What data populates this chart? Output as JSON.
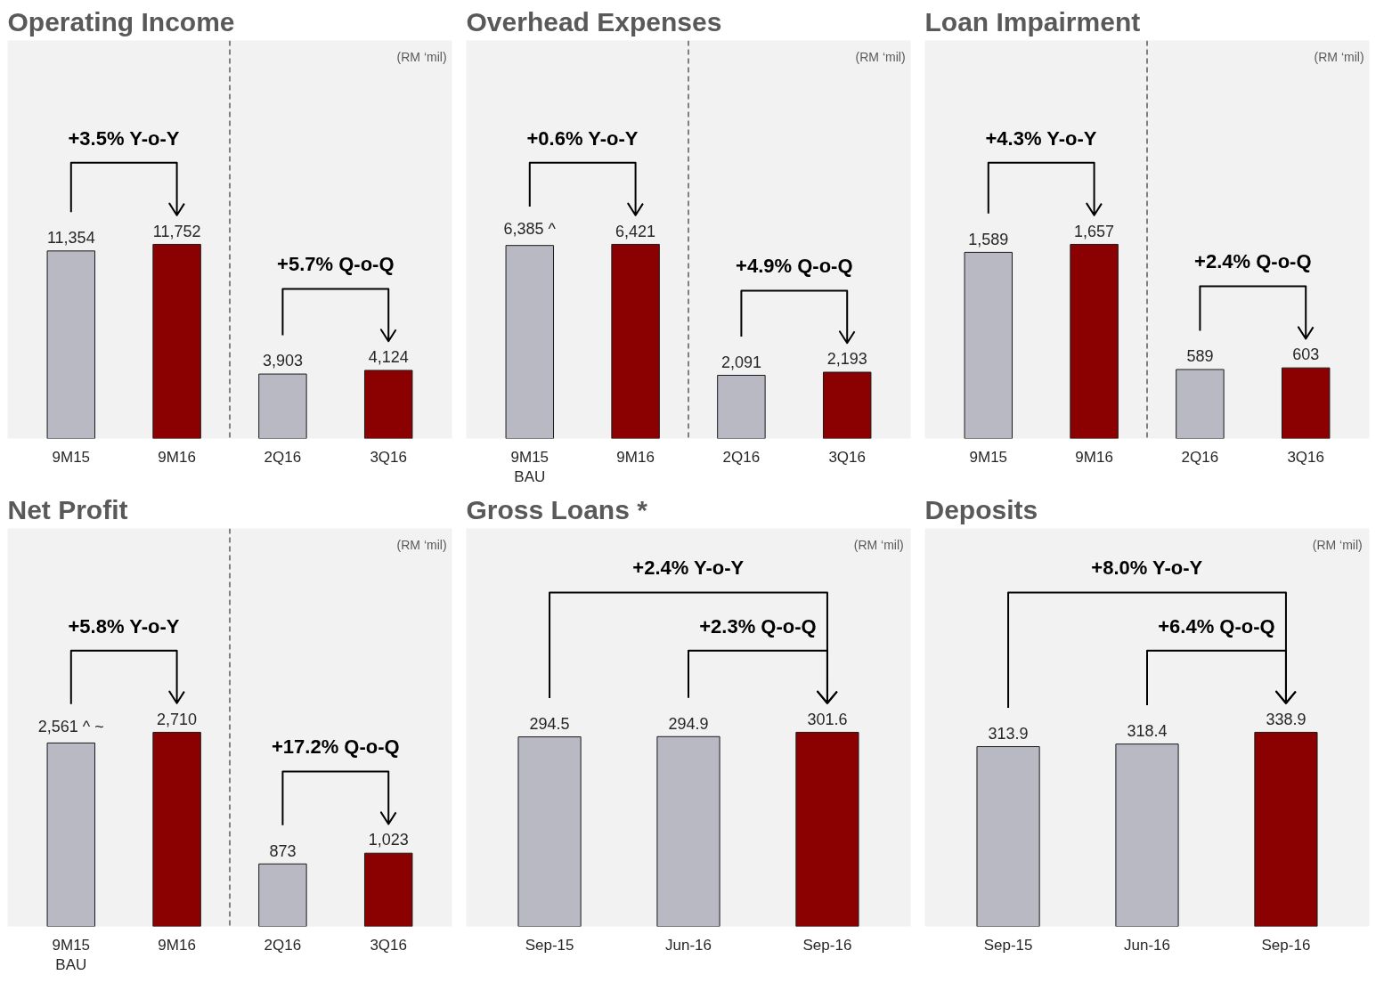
{
  "chart_data": [
    {
      "type": "bar",
      "title": "Operating Income",
      "subtitle": "(RM ‘mil)",
      "categories": [
        "9M15",
        "9M16",
        "2Q16",
        "3Q16"
      ],
      "values": [
        11354,
        11752,
        3903,
        4124
      ],
      "colors": [
        "#b9b9c3",
        "#8b0000",
        "#b9b9c3",
        "#8b0000"
      ],
      "value_labels": [
        "11,354",
        "11,752",
        "3,903",
        "4,124"
      ],
      "annotations": [
        "+3.5% Y-o-Y",
        "+5.7% Q-o-Q"
      ],
      "tick_labels": "x"
    },
    {
      "type": "bar",
      "title": "Overhead Expenses",
      "subtitle": "(RM ‘mil)",
      "categories": [
        "9M15\nBAU",
        "9M16",
        "2Q16",
        "3Q16"
      ],
      "values": [
        6385,
        6421,
        2091,
        2193
      ],
      "colors": [
        "#b9b9c3",
        "#8b0000",
        "#b9b9c3",
        "#8b0000"
      ],
      "value_labels": [
        "6,385 ^",
        "6,421",
        "2,091",
        "2,193"
      ],
      "annotations": [
        "+0.6% Y-o-Y",
        "+4.9% Q-o-Q"
      ],
      "tick_labels": "x"
    },
    {
      "type": "bar",
      "title": "Loan Impairment",
      "subtitle": "(RM ‘mil)",
      "categories": [
        "9M15",
        "9M16",
        "2Q16",
        "3Q16"
      ],
      "values": [
        1589,
        1657,
        589,
        603
      ],
      "colors": [
        "#b9b9c3",
        "#8b0000",
        "#b9b9c3",
        "#8b0000"
      ],
      "value_labels": [
        "1,589",
        "1,657",
        "589",
        "603"
      ],
      "annotations": [
        "+4.3% Y-o-Y",
        "+2.4% Q-o-Q"
      ],
      "tick_labels": "x"
    },
    {
      "type": "bar",
      "title": "Net Profit",
      "subtitle": "(RM ‘mil)",
      "categories": [
        "9M15\nBAU",
        "9M16",
        "2Q16",
        "3Q16"
      ],
      "values": [
        2561,
        2710,
        873,
        1023
      ],
      "colors": [
        "#b9b9c3",
        "#8b0000",
        "#b9b9c3",
        "#8b0000"
      ],
      "value_labels": [
        "2,561 ^ ~",
        "2,710",
        "873",
        "1,023"
      ],
      "annotations": [
        "+5.8% Y-o-Y",
        "+17.2% Q-o-Q"
      ],
      "tick_labels": "x"
    },
    {
      "type": "bar",
      "title": "Gross Loans *",
      "subtitle": "(RM ‘mil)",
      "categories": [
        "Sep-15",
        "Jun-16",
        "Sep-16"
      ],
      "values": [
        294.5,
        294.9,
        301.6
      ],
      "colors": [
        "#b9b9c3",
        "#b9b9c3",
        "#8b0000"
      ],
      "value_labels": [
        "294.5",
        "294.9",
        "301.6"
      ],
      "annotations": [
        "+2.4% Y-o-Y",
        "+2.3% Q-o-Q"
      ],
      "tick_labels": "x"
    },
    {
      "type": "bar",
      "title": "Deposits",
      "subtitle": "(RM ‘mil)",
      "categories": [
        "Sep-15",
        "Jun-16",
        "Sep-16"
      ],
      "values": [
        313.9,
        318.4,
        338.9
      ],
      "colors": [
        "#b9b9c3",
        "#b9b9c3",
        "#8b0000"
      ],
      "value_labels": [
        "313.9",
        "318.4",
        "338.9"
      ],
      "annotations": [
        "+8.0% Y-o-Y",
        "+6.4% Q-o-Q"
      ],
      "tick_labels": "x"
    }
  ]
}
